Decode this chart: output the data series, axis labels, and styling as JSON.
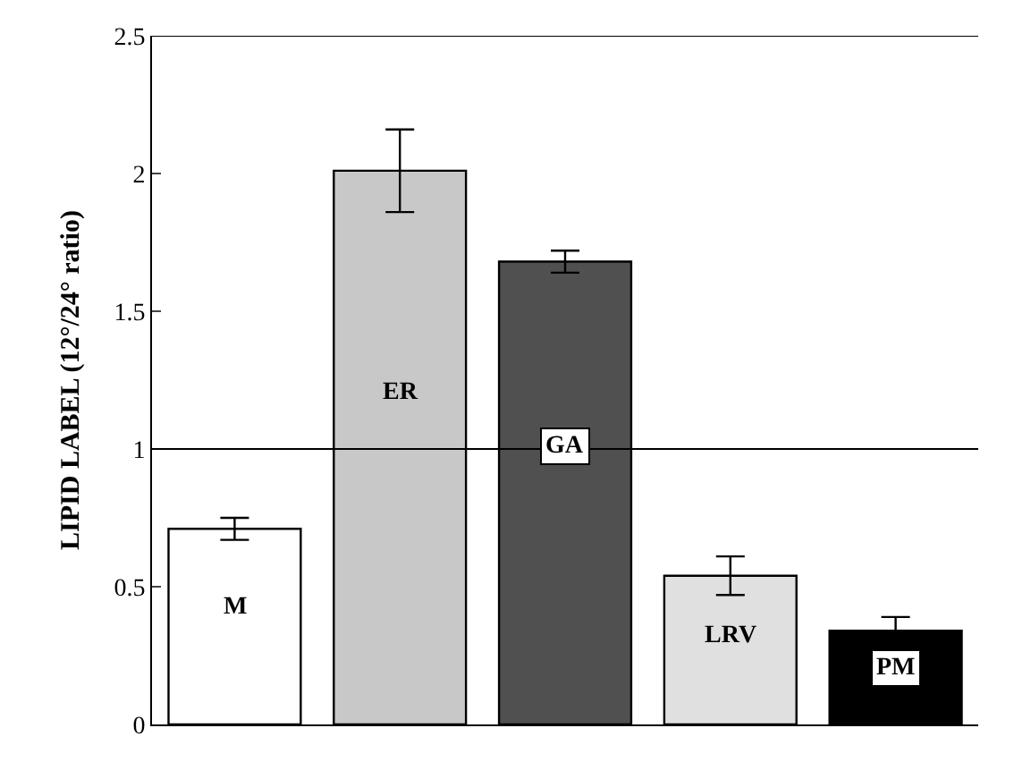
{
  "chart_data": {
    "type": "bar",
    "ylabel": "LIPID LABEL (12°/24° ratio)",
    "categories": [
      "M",
      "ER",
      "GA",
      "LRV",
      "PM"
    ],
    "values": [
      0.71,
      2.01,
      1.68,
      0.54,
      0.34
    ],
    "errors": [
      0.04,
      0.15,
      0.04,
      0.07,
      0.05
    ],
    "colors": [
      "#ffffff",
      "#c8c8c8",
      "#505050",
      "#e0e0e0",
      "#000000"
    ],
    "ylim": [
      0,
      2.5
    ],
    "yticks": [
      0,
      0.5,
      1,
      1.5,
      2,
      2.5
    ],
    "ref_lines": [
      {
        "axis": "y",
        "value": 1,
        "label": null
      }
    ]
  }
}
